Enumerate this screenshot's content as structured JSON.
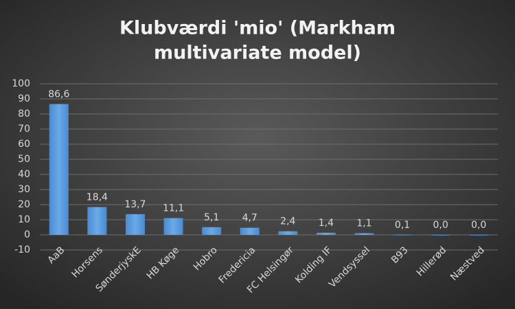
{
  "chart_data": {
    "type": "bar",
    "title": [
      "Klubværdi 'mio' (Markham",
      "multivariate model)"
    ],
    "categories": [
      "AaB",
      "Horsens",
      "SønderjyskE",
      "HB Køge",
      "Hobro",
      "Fredericia",
      "FC Helsingør",
      "Kolding IF",
      "Vendsyssel",
      "B93",
      "Hillerød",
      "Næstved"
    ],
    "values": [
      86.6,
      18.4,
      13.7,
      11.1,
      5.1,
      4.7,
      2.4,
      1.4,
      1.1,
      0.1,
      0.0,
      0.0
    ],
    "value_labels": [
      "86,6",
      "18,4",
      "13,7",
      "11,1",
      "5,1",
      "4,7",
      "2,4",
      "1,4",
      "1,1",
      "0,1",
      "0,0",
      "0,0"
    ],
    "color": "#5b9bd5",
    "ylim": [
      -10,
      100
    ],
    "yticks": [
      -10,
      0,
      10,
      20,
      30,
      40,
      50,
      60,
      70,
      80,
      90,
      100
    ],
    "grid": true
  }
}
